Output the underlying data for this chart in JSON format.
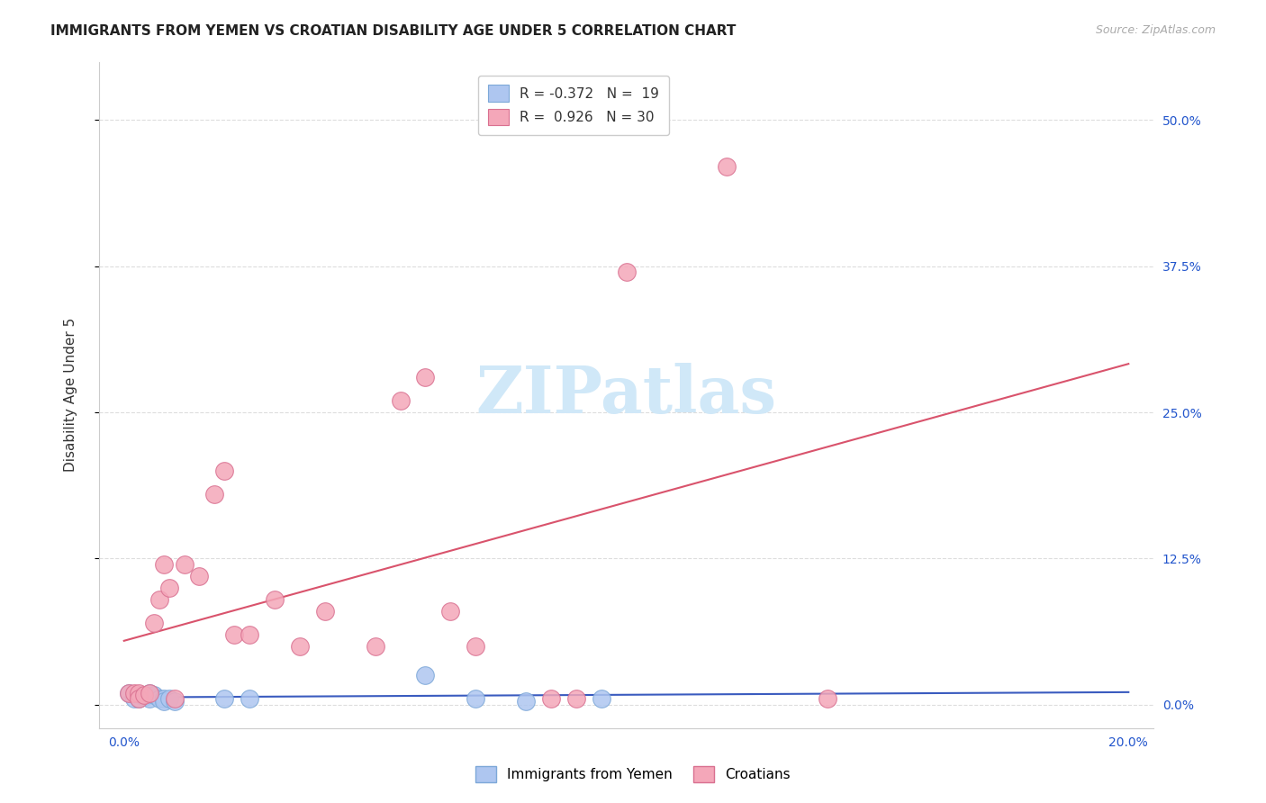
{
  "title": "IMMIGRANTS FROM YEMEN VS CROATIAN DISABILITY AGE UNDER 5 CORRELATION CHART",
  "source": "Source: ZipAtlas.com",
  "ylabel": "Disability Age Under 5",
  "ytick_labels": [
    "0.0%",
    "12.5%",
    "25.0%",
    "37.5%",
    "50.0%"
  ],
  "ytick_values": [
    0,
    0.125,
    0.25,
    0.375,
    0.5
  ],
  "legend_labels_bottom": [
    "Immigrants from Yemen",
    "Croatians"
  ],
  "blue_line_color": "#3a5bbf",
  "red_line_color": "#d9536c",
  "watermark_text": "ZIPatlas",
  "watermark_color": "#d0e8f8",
  "background_color": "#ffffff",
  "grid_color": "#dddddd",
  "yemen_points": [
    [
      0.001,
      0.01
    ],
    [
      0.002,
      0.005
    ],
    [
      0.003,
      0.008
    ],
    [
      0.003,
      0.005
    ],
    [
      0.004,
      0.007
    ],
    [
      0.005,
      0.005
    ],
    [
      0.005,
      0.01
    ],
    [
      0.006,
      0.008
    ],
    [
      0.007,
      0.005
    ],
    [
      0.008,
      0.005
    ],
    [
      0.008,
      0.003
    ],
    [
      0.009,
      0.005
    ],
    [
      0.01,
      0.003
    ],
    [
      0.02,
      0.005
    ],
    [
      0.025,
      0.005
    ],
    [
      0.06,
      0.025
    ],
    [
      0.07,
      0.005
    ],
    [
      0.08,
      0.003
    ],
    [
      0.095,
      0.005
    ]
  ],
  "croatian_points": [
    [
      0.001,
      0.01
    ],
    [
      0.002,
      0.01
    ],
    [
      0.003,
      0.01
    ],
    [
      0.003,
      0.005
    ],
    [
      0.004,
      0.008
    ],
    [
      0.005,
      0.01
    ],
    [
      0.006,
      0.07
    ],
    [
      0.007,
      0.09
    ],
    [
      0.008,
      0.12
    ],
    [
      0.009,
      0.1
    ],
    [
      0.01,
      0.005
    ],
    [
      0.012,
      0.12
    ],
    [
      0.015,
      0.11
    ],
    [
      0.018,
      0.18
    ],
    [
      0.02,
      0.2
    ],
    [
      0.022,
      0.06
    ],
    [
      0.025,
      0.06
    ],
    [
      0.03,
      0.09
    ],
    [
      0.035,
      0.05
    ],
    [
      0.04,
      0.08
    ],
    [
      0.05,
      0.05
    ],
    [
      0.055,
      0.26
    ],
    [
      0.06,
      0.28
    ],
    [
      0.065,
      0.08
    ],
    [
      0.07,
      0.05
    ],
    [
      0.085,
      0.005
    ],
    [
      0.09,
      0.005
    ],
    [
      0.1,
      0.37
    ],
    [
      0.12,
      0.46
    ],
    [
      0.14,
      0.005
    ]
  ],
  "title_fontsize": 11,
  "source_fontsize": 9,
  "tick_fontsize": 10,
  "ylabel_fontsize": 11
}
